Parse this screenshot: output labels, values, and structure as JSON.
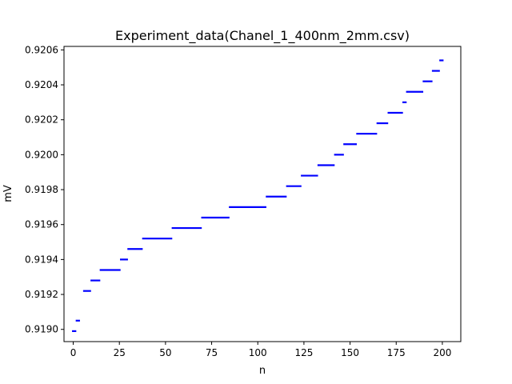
{
  "chart_data": {
    "type": "scatter",
    "title": "Experiment_data(Chanel_1_400nm_2mm.csv)",
    "xlabel": "n",
    "ylabel": "mV",
    "xlim": [
      -5,
      210
    ],
    "ylim": [
      0.91893,
      0.92062
    ],
    "xticks": [
      0,
      25,
      50,
      75,
      100,
      125,
      150,
      175,
      200
    ],
    "xtick_labels": [
      "0",
      "25",
      "50",
      "75",
      "100",
      "125",
      "150",
      "175",
      "200"
    ],
    "yticks": [
      0.919,
      0.9192,
      0.9194,
      0.9196,
      0.9198,
      0.92,
      0.9202,
      0.9204,
      0.9206
    ],
    "ytick_labels": [
      "0.9190",
      "0.9192",
      "0.9194",
      "0.9196",
      "0.9198",
      "0.9200",
      "0.9202",
      "0.9204",
      "0.9206"
    ],
    "grid": false,
    "color": "#0000ff",
    "marker": "short horizontal dash",
    "series": [
      {
        "segments": [
          {
            "x": [
              0,
              1
            ],
            "y": 0.91899
          },
          {
            "x": [
              2,
              3
            ],
            "y": 0.91905
          },
          {
            "x": [
              6,
              9
            ],
            "y": 0.91922
          },
          {
            "x": [
              10,
              14
            ],
            "y": 0.91928
          },
          {
            "x": [
              15,
              25
            ],
            "y": 0.91934
          },
          {
            "x": [
              26,
              29
            ],
            "y": 0.9194
          },
          {
            "x": [
              30,
              37
            ],
            "y": 0.91946
          },
          {
            "x": [
              38,
              53
            ],
            "y": 0.91952
          },
          {
            "x": [
              54,
              69
            ],
            "y": 0.91958
          },
          {
            "x": [
              70,
              84
            ],
            "y": 0.91964
          },
          {
            "x": [
              85,
              104
            ],
            "y": 0.9197
          },
          {
            "x": [
              105,
              115
            ],
            "y": 0.91976
          },
          {
            "x": [
              116,
              123
            ],
            "y": 0.91982
          },
          {
            "x": [
              124,
              132
            ],
            "y": 0.91988
          },
          {
            "x": [
              133,
              141
            ],
            "y": 0.91994
          },
          {
            "x": [
              142,
              146
            ],
            "y": 0.92
          },
          {
            "x": [
              147,
              153
            ],
            "y": 0.92006
          },
          {
            "x": [
              154,
              164
            ],
            "y": 0.92012
          },
          {
            "x": [
              165,
              170
            ],
            "y": 0.92018
          },
          {
            "x": [
              171,
              178
            ],
            "y": 0.92024
          },
          {
            "x": [
              179,
              180
            ],
            "y": 0.9203
          },
          {
            "x": [
              181,
              189
            ],
            "y": 0.92036
          },
          {
            "x": [
              190,
              194
            ],
            "y": 0.92042
          },
          {
            "x": [
              195,
              198
            ],
            "y": 0.92048
          },
          {
            "x": [
              199,
              200
            ],
            "y": 0.92054
          }
        ]
      }
    ]
  }
}
